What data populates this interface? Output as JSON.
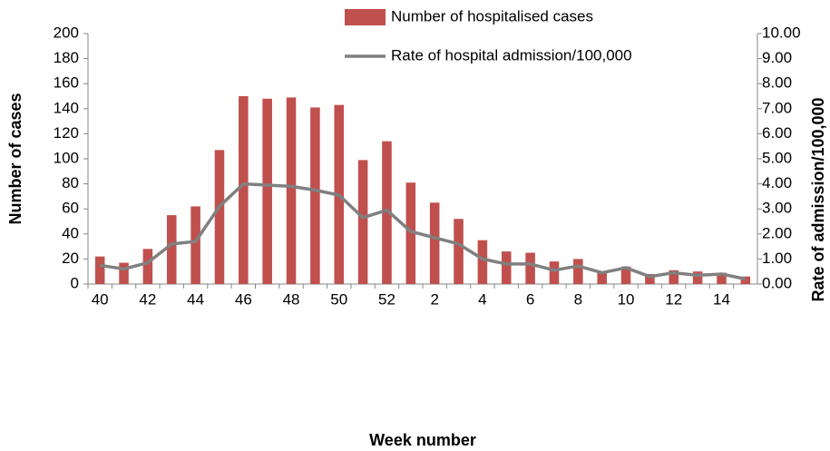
{
  "chart_data": {
    "type": "bar-line",
    "x_label": "Week number",
    "y_label": "Number of cases",
    "y2_label": "Rate of admission/100,000",
    "categories": [
      "40",
      null,
      "42",
      null,
      "44",
      null,
      "46",
      null,
      "48",
      null,
      "50",
      null,
      "52",
      null,
      "2",
      null,
      "4",
      null,
      "6",
      null,
      "8",
      null,
      "10",
      null,
      "12",
      null,
      "14",
      null
    ],
    "series": [
      {
        "name": "Number of hospitalised cases",
        "type": "bar",
        "color": "#c0504d",
        "values": [
          22,
          17,
          28,
          55,
          62,
          107,
          150,
          148,
          149,
          141,
          143,
          99,
          114,
          81,
          65,
          52,
          35,
          26,
          25,
          18,
          20,
          10,
          14,
          8,
          11,
          10,
          9,
          6
        ]
      },
      {
        "name": "Rate of hospital admission/100,000",
        "type": "line",
        "axis": "y2",
        "color": "#808080",
        "values": [
          0.75,
          0.6,
          0.85,
          1.6,
          1.7,
          3.1,
          4.0,
          3.95,
          3.9,
          3.75,
          3.55,
          2.65,
          2.95,
          2.1,
          1.85,
          1.6,
          1.0,
          0.8,
          0.8,
          0.55,
          0.72,
          0.45,
          0.65,
          0.3,
          0.45,
          0.35,
          0.4,
          0.2
        ]
      }
    ],
    "ylim": [
      0,
      200
    ],
    "yticks": [
      0,
      20,
      40,
      60,
      80,
      100,
      120,
      140,
      160,
      180,
      200
    ],
    "y2lim": [
      0,
      10
    ],
    "y2ticks": [
      {
        "value": 0,
        "label": "0.00"
      },
      {
        "value": 1,
        "label": "1.00"
      },
      {
        "value": 2,
        "label": "2.00"
      },
      {
        "value": 3,
        "label": "3.00"
      },
      {
        "value": 4,
        "label": "4.00"
      },
      {
        "value": 5,
        "label": "5.00"
      },
      {
        "value": 6,
        "label": "6.00"
      },
      {
        "value": 7,
        "label": "7.00"
      },
      {
        "value": 8,
        "label": "8.00"
      },
      {
        "value": 9,
        "label": "9.00"
      },
      {
        "value": 10,
        "label": "10.00"
      }
    ]
  }
}
